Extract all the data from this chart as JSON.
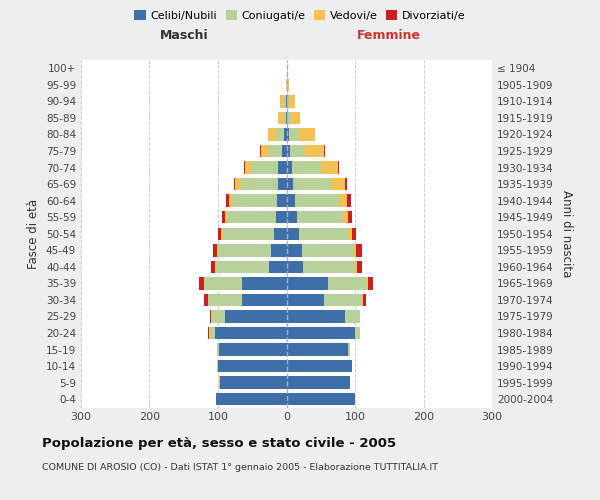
{
  "age_groups": [
    "0-4",
    "5-9",
    "10-14",
    "15-19",
    "20-24",
    "25-29",
    "30-34",
    "35-39",
    "40-44",
    "45-49",
    "50-54",
    "55-59",
    "60-64",
    "65-69",
    "70-74",
    "75-79",
    "80-84",
    "85-89",
    "90-94",
    "95-99",
    "100+"
  ],
  "birth_years": [
    "2000-2004",
    "1995-1999",
    "1990-1994",
    "1985-1989",
    "1980-1984",
    "1975-1979",
    "1970-1974",
    "1965-1969",
    "1960-1964",
    "1955-1959",
    "1950-1954",
    "1945-1949",
    "1940-1944",
    "1935-1939",
    "1930-1934",
    "1925-1929",
    "1920-1924",
    "1915-1919",
    "1910-1914",
    "1905-1909",
    "≤ 1904"
  ],
  "maschi": {
    "celibi": [
      103,
      97,
      100,
      98,
      105,
      90,
      65,
      65,
      25,
      22,
      18,
      15,
      14,
      12,
      12,
      7,
      3,
      1,
      1,
      0,
      0
    ],
    "coniugati": [
      0,
      0,
      1,
      3,
      7,
      20,
      50,
      55,
      78,
      78,
      75,
      72,
      65,
      55,
      40,
      20,
      12,
      3,
      3,
      0,
      0
    ],
    "vedovi": [
      0,
      1,
      0,
      0,
      1,
      0,
      0,
      1,
      1,
      2,
      2,
      3,
      5,
      8,
      8,
      10,
      12,
      8,
      5,
      1,
      0
    ],
    "divorziati": [
      0,
      0,
      0,
      0,
      1,
      2,
      6,
      7,
      6,
      5,
      5,
      4,
      4,
      2,
      2,
      1,
      0,
      0,
      0,
      0,
      0
    ]
  },
  "femmine": {
    "nubili": [
      100,
      93,
      95,
      90,
      100,
      85,
      55,
      60,
      24,
      22,
      18,
      15,
      12,
      10,
      8,
      5,
      3,
      1,
      1,
      0,
      0
    ],
    "coniugate": [
      0,
      0,
      1,
      3,
      7,
      22,
      55,
      58,
      76,
      76,
      72,
      68,
      65,
      55,
      42,
      22,
      15,
      5,
      3,
      1,
      0
    ],
    "vedove": [
      0,
      0,
      0,
      0,
      0,
      0,
      1,
      1,
      3,
      4,
      5,
      7,
      12,
      20,
      25,
      28,
      23,
      14,
      8,
      2,
      0
    ],
    "divorziate": [
      0,
      0,
      0,
      0,
      0,
      1,
      5,
      7,
      7,
      8,
      6,
      5,
      5,
      3,
      2,
      1,
      1,
      0,
      0,
      0,
      0
    ]
  },
  "colors": {
    "celibi": "#3e6fa8",
    "coniugati": "#b8d09a",
    "vedovi": "#f5c155",
    "divorziati": "#cc2020"
  },
  "xlim": 300,
  "title": "Popolazione per età, sesso e stato civile - 2005",
  "subtitle": "COMUNE DI AROSIO (CO) - Dati ISTAT 1° gennaio 2005 - Elaborazione TUTTITALIA.IT",
  "ylabel_left": "Fasce di età",
  "ylabel_right": "Anni di nascita",
  "xlabel_maschi": "Maschi",
  "xlabel_femmine": "Femmine",
  "bg_color": "#eeeeee",
  "plot_bg": "#ffffff",
  "grid_color": "#cccccc"
}
